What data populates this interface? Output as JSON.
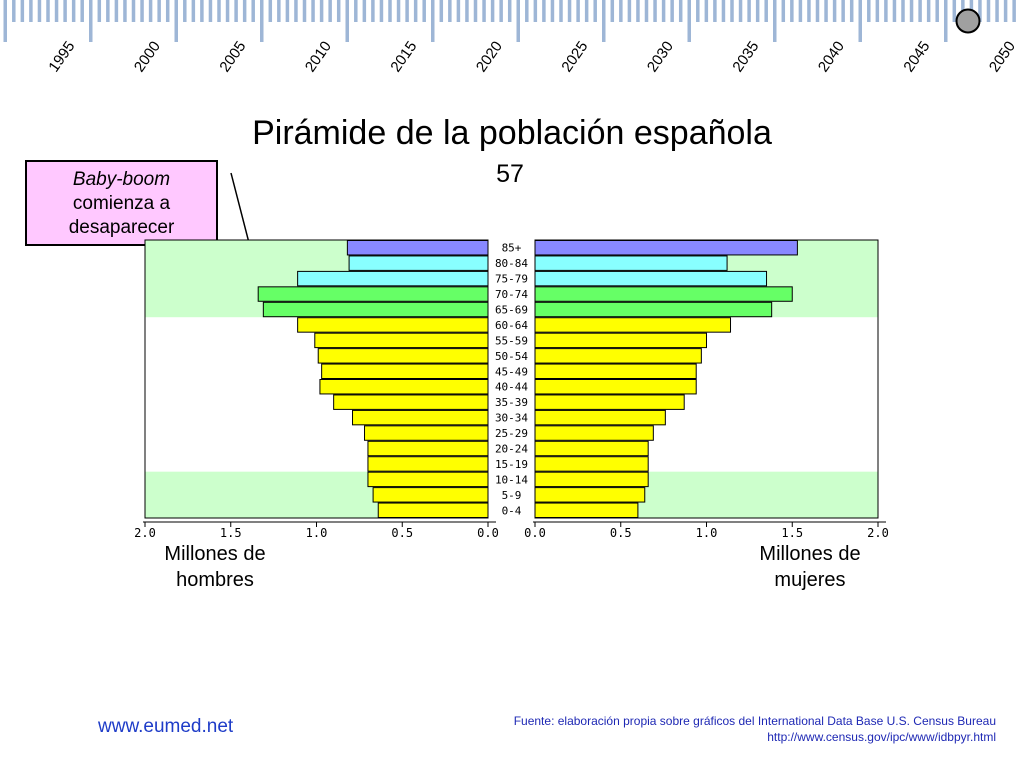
{
  "timeline": {
    "years": [
      "1995",
      "2000",
      "2005",
      "2010",
      "2015",
      "2020",
      "2025",
      "2030",
      "2035",
      "2040",
      "2045",
      "2050"
    ],
    "color": "#9eb6d6",
    "marker_color": "#a0a0a0"
  },
  "slide": {
    "title": "Pirámide de la población española",
    "subtitle": "57"
  },
  "callout": {
    "line1": "Baby-boom",
    "line2": "comienza a",
    "line3": "desaparecer"
  },
  "labels": {
    "left": [
      "Millones de",
      "hombres"
    ],
    "right": [
      "Millones de",
      "mujeres"
    ]
  },
  "footer": {
    "url": "www.eumed.net",
    "source_line1": "Fuente: elaboración propia sobre gráficos del International Data Base U.S. Census Bureau",
    "source_line2": "http://www.census.gov/ipc/www/idbpyr.html"
  },
  "chart_data": {
    "type": "bar",
    "orientation": "horizontal-pyramid",
    "categories": [
      "85+",
      "80-84",
      "75-79",
      "70-74",
      "65-69",
      "60-64",
      "55-59",
      "50-54",
      "45-49",
      "40-44",
      "35-39",
      "30-34",
      "25-29",
      "20-24",
      "15-19",
      "10-14",
      "5-9",
      "0-4"
    ],
    "series": [
      {
        "name": "Millones de hombres",
        "values": [
          0.82,
          0.81,
          1.11,
          1.34,
          1.31,
          1.11,
          1.01,
          0.99,
          0.97,
          0.98,
          0.9,
          0.79,
          0.72,
          0.7,
          0.7,
          0.7,
          0.67,
          0.64
        ]
      },
      {
        "name": "Millones de mujeres",
        "values": [
          1.53,
          1.12,
          1.35,
          1.5,
          1.38,
          1.14,
          1.0,
          0.97,
          0.94,
          0.94,
          0.87,
          0.76,
          0.69,
          0.66,
          0.66,
          0.66,
          0.64,
          0.6
        ]
      }
    ],
    "bar_colors": [
      "#8888ff",
      "#88ffff",
      "#88ffff",
      "#66ff66",
      "#66ff66",
      "#ffff00",
      "#ffff00",
      "#ffff00",
      "#ffff00",
      "#ffff00",
      "#ffff00",
      "#ffff00",
      "#ffff00",
      "#ffff00",
      "#ffff00",
      "#ffff00",
      "#ffff00",
      "#ffff00"
    ],
    "band_color": "#ccffcc",
    "xlim": [
      0,
      2.0
    ],
    "tick_labels": [
      "2.0",
      "1.5",
      "1.0",
      "0.5",
      "0.0"
    ]
  }
}
